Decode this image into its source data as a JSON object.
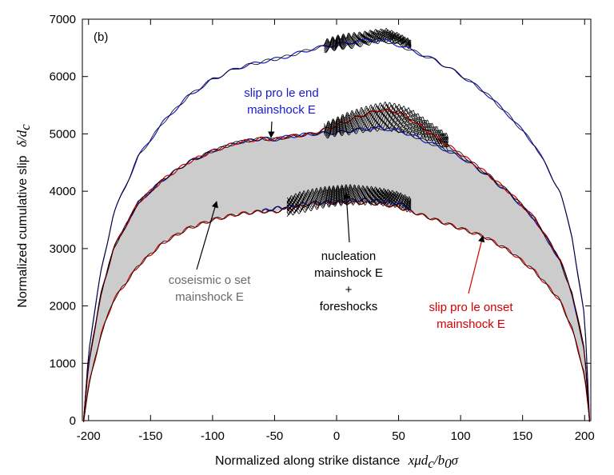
{
  "chart_data": {
    "type": "line",
    "panel_label": "(b)",
    "xlabel_text": "Normalized along strike distance",
    "xlabel_math": "xμd",
    "xlabel_math_sub": "c",
    "xlabel_math_tail": "/b",
    "xlabel_math_sub2": "0",
    "xlabel_math_tail2": "σ",
    "ylabel_text": "Normalized cumulative slip",
    "ylabel_math": "δ/d",
    "ylabel_math_sub": "c",
    "xlim": [
      -205,
      205
    ],
    "ylim": [
      0,
      7000
    ],
    "xticks": [
      -200,
      -150,
      -100,
      -50,
      0,
      50,
      100,
      150,
      200
    ],
    "yticks": [
      0,
      1000,
      2000,
      3000,
      4000,
      5000,
      6000,
      7000
    ],
    "grid": false,
    "colors": {
      "onset": "#d40000",
      "end": "#1a1acc",
      "fill": "#cccccc",
      "black": "#000000",
      "grey_text": "#6a6a6a"
    },
    "series": [
      {
        "key": "outer",
        "color": "#1a1acc",
        "x": [
          -204,
          -200,
          -190,
          -180,
          -160,
          -140,
          -120,
          -100,
          -80,
          -60,
          -50,
          -40,
          -20,
          0,
          20,
          35,
          50,
          60,
          80,
          100,
          120,
          140,
          160,
          180,
          190,
          200,
          204
        ],
        "y": [
          0,
          1200,
          2600,
          3600,
          4600,
          5200,
          5650,
          5950,
          6150,
          6260,
          6300,
          6350,
          6480,
          6560,
          6620,
          6640,
          6550,
          6460,
          6280,
          6030,
          5720,
          5300,
          4800,
          4000,
          3200,
          1800,
          0
        ]
      },
      {
        "key": "middle",
        "color": "#1a1acc",
        "x": [
          -204,
          -200,
          -190,
          -180,
          -160,
          -140,
          -120,
          -100,
          -80,
          -60,
          -50,
          -40,
          -20,
          0,
          20,
          35,
          50,
          60,
          80,
          100,
          120,
          140,
          160,
          180,
          190,
          200,
          204
        ],
        "y": [
          0,
          1000,
          2200,
          3000,
          3800,
          4200,
          4500,
          4700,
          4850,
          4920,
          4900,
          4950,
          5000,
          5020,
          5080,
          5100,
          5060,
          4980,
          4800,
          4600,
          4300,
          3950,
          3500,
          2800,
          2200,
          1200,
          0
        ]
      },
      {
        "key": "middle-onset",
        "color": "#d40000",
        "x": [
          -204,
          -200,
          -190,
          -180,
          -160,
          -140,
          -120,
          -100,
          -80,
          -60,
          -50,
          -40,
          -20,
          0,
          20,
          35,
          50,
          60,
          80,
          100,
          120,
          140,
          160,
          180,
          190,
          200,
          204
        ],
        "y": [
          0,
          1000,
          2200,
          3000,
          3800,
          4200,
          4500,
          4700,
          4850,
          4920,
          4900,
          4950,
          5000,
          5150,
          5320,
          5420,
          5380,
          5250,
          4950,
          4650,
          4330,
          3970,
          3520,
          2820,
          2220,
          1220,
          0
        ]
      },
      {
        "key": "inner",
        "color": "#d40000",
        "x": [
          -204,
          -200,
          -190,
          -180,
          -160,
          -140,
          -120,
          -100,
          -80,
          -60,
          -50,
          -40,
          -20,
          0,
          20,
          35,
          50,
          60,
          80,
          100,
          120,
          140,
          160,
          180,
          190,
          200,
          204
        ],
        "y": [
          0,
          600,
          1500,
          2100,
          2700,
          3100,
          3350,
          3500,
          3600,
          3650,
          3640,
          3700,
          3780,
          3800,
          3800,
          3780,
          3720,
          3650,
          3500,
          3350,
          3200,
          2950,
          2600,
          2100,
          1600,
          800,
          0
        ]
      },
      {
        "key": "inner-top",
        "color": "#1a1acc",
        "x": [
          -60,
          -50,
          -40,
          -20,
          0,
          20,
          35,
          50,
          60
        ],
        "y": [
          3650,
          3700,
          3720,
          3800,
          3820,
          3850,
          3830,
          3790,
          3700
        ]
      }
    ],
    "nucleation_bands": [
      {
        "x": [
          -10,
          0,
          10,
          20,
          30,
          40,
          50,
          60
        ],
        "base": [
          6450,
          6500,
          6520,
          6560,
          6600,
          6640,
          6600,
          6500
        ],
        "top": [
          6600,
          6680,
          6720,
          6740,
          6780,
          6800,
          6720,
          6600
        ]
      },
      {
        "x": [
          -10,
          0,
          10,
          20,
          30,
          40,
          50,
          60,
          70,
          80,
          90
        ],
        "base": [
          4950,
          5000,
          5020,
          5060,
          5080,
          5100,
          5060,
          5000,
          4950,
          4850,
          4750
        ],
        "top": [
          5150,
          5250,
          5350,
          5420,
          5480,
          5520,
          5480,
          5400,
          5250,
          5100,
          4950
        ]
      },
      {
        "x": [
          -40,
          -30,
          -20,
          -10,
          0,
          10,
          20,
          30,
          40,
          50,
          60
        ],
        "base": [
          3600,
          3650,
          3700,
          3750,
          3780,
          3800,
          3800,
          3800,
          3780,
          3750,
          3650
        ],
        "top": [
          3850,
          3950,
          4000,
          4040,
          4060,
          4080,
          4060,
          4040,
          4000,
          3950,
          3850
        ]
      }
    ],
    "annotations": [
      {
        "key": "end",
        "lines": [
          "slip pro  le end",
          "mainshock E"
        ],
        "color": "#1a1acc"
      },
      {
        "key": "coseismic",
        "lines": [
          "coseismic o  set",
          "mainshock E"
        ],
        "color": "#6a6a6a"
      },
      {
        "key": "nucleation",
        "lines": [
          "nucleation",
          "mainshock E",
          "+",
          "foreshocks"
        ],
        "color": "#000000"
      },
      {
        "key": "onset",
        "lines": [
          "slip pro  le onset",
          "mainshock E"
        ],
        "color": "#d40000"
      }
    ]
  }
}
